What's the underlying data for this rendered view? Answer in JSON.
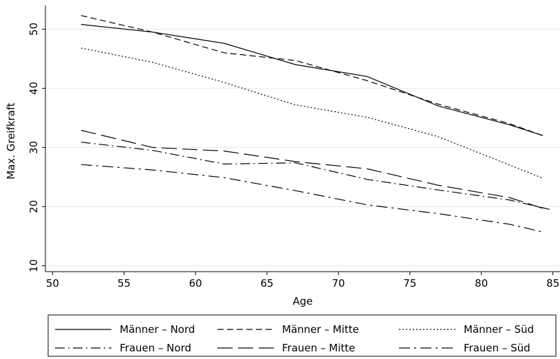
{
  "chart_data": {
    "type": "line",
    "title": "",
    "xlabel": "Age",
    "ylabel": "Max. Greifkraft",
    "xlim": [
      49.5,
      85.5
    ],
    "ylim": [
      9,
      54
    ],
    "xticks": [
      50,
      55,
      60,
      65,
      70,
      75,
      80,
      85
    ],
    "yticks": [
      10,
      20,
      30,
      40,
      50
    ],
    "grid": true,
    "legend_position": "bottom",
    "series": [
      {
        "name": "Männer – Nord",
        "style": "solid",
        "x": [
          52,
          57,
          62,
          67,
          72,
          77,
          82,
          84.3
        ],
        "y": [
          50.8,
          49.5,
          47.6,
          44.0,
          42.0,
          37.0,
          33.8,
          32.0
        ]
      },
      {
        "name": "Männer – Mitte",
        "style": "dash",
        "x": [
          52,
          57,
          62,
          67,
          72,
          77,
          82,
          84.3
        ],
        "y": [
          52.3,
          49.5,
          46.0,
          44.7,
          41.3,
          37.3,
          34.0,
          32.0
        ]
      },
      {
        "name": "Männer – Süd",
        "style": "dot",
        "x": [
          52,
          57,
          62,
          67,
          72,
          77,
          82,
          84.3
        ],
        "y": [
          46.8,
          44.4,
          41.0,
          37.2,
          35.1,
          31.8,
          27.0,
          24.8
        ]
      },
      {
        "name": "Frauen – Nord",
        "style": "dashdot",
        "x": [
          52,
          57,
          62,
          67,
          72,
          77,
          82,
          85
        ],
        "y": [
          30.9,
          29.5,
          27.2,
          27.4,
          24.6,
          22.8,
          21.1,
          19.4
        ]
      },
      {
        "name": "Frauen – Mitte",
        "style": "longdash",
        "x": [
          52,
          57,
          62,
          67,
          72,
          77,
          82,
          84.3
        ],
        "y": [
          32.9,
          30.0,
          29.4,
          27.6,
          26.4,
          23.6,
          21.5,
          19.7
        ]
      },
      {
        "name": "Frauen – Süd",
        "style": "longdashdot",
        "x": [
          52,
          57,
          62,
          67,
          72,
          77,
          82,
          84.3
        ],
        "y": [
          27.1,
          26.2,
          24.9,
          22.7,
          20.3,
          18.8,
          17.0,
          15.7
        ]
      }
    ],
    "colors": {
      "line": "#000000",
      "grid": "#e6e6e6",
      "background": "#ffffff"
    }
  }
}
